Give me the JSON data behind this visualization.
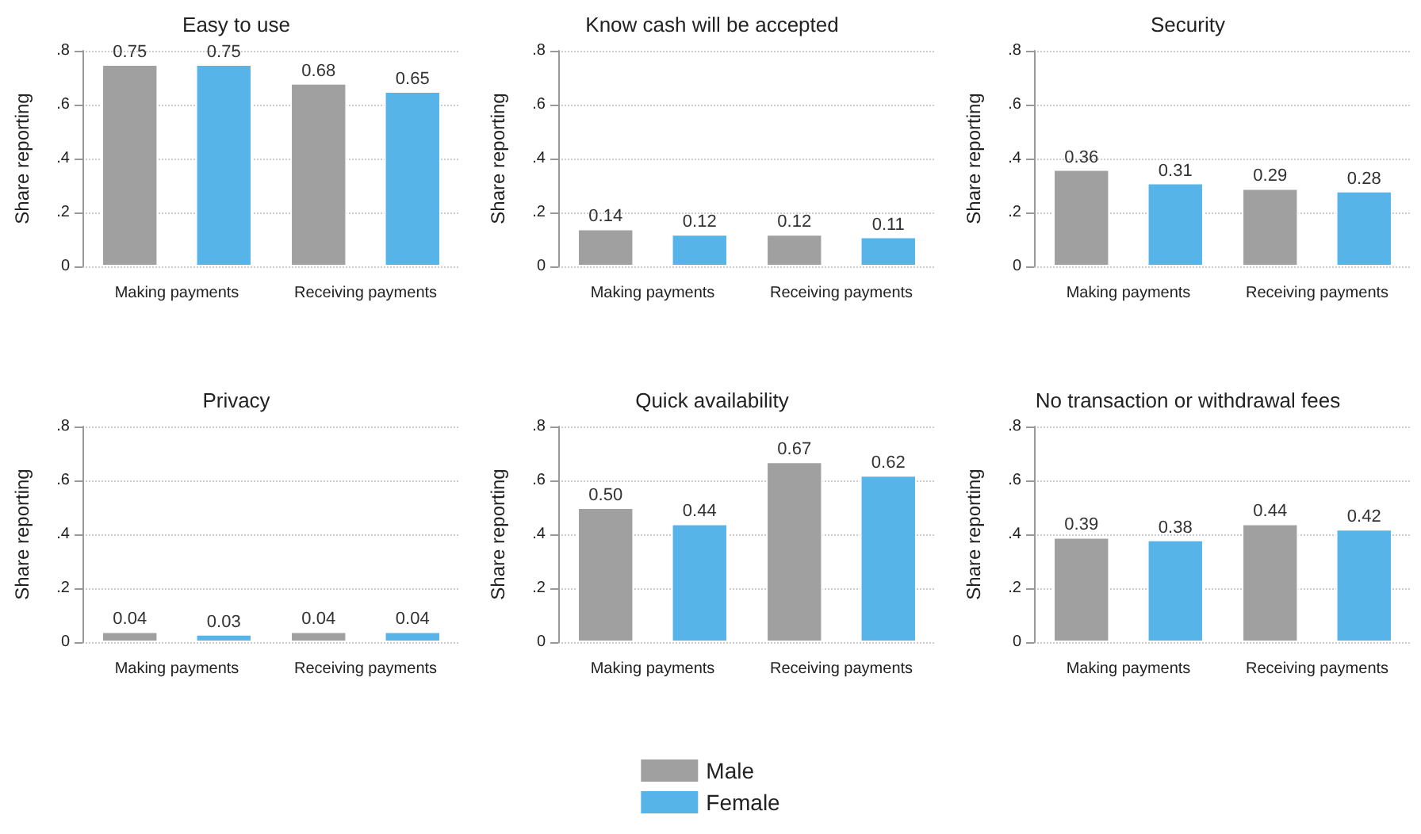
{
  "chart_data": [
    {
      "type": "bar",
      "title": "Easy to use",
      "ylabel": "Share reporting",
      "categories": [
        "Making payments",
        "Receiving payments"
      ],
      "legend": "bottom",
      "series": [
        {
          "name": "Male",
          "color": "#a0a0a0",
          "values": [
            0.75,
            0.68
          ],
          "value_labels": [
            "0.75",
            "0.68"
          ]
        },
        {
          "name": "Female",
          "color": "#56b4e9",
          "values": [
            0.75,
            0.65
          ],
          "value_labels": [
            "0.75",
            "0.65"
          ]
        }
      ],
      "ylim": [
        0,
        0.8
      ],
      "yticks": [
        {
          "value": 0,
          "label": "0"
        },
        {
          "value": 0.2,
          "label": ".2"
        },
        {
          "value": 0.4,
          "label": ".4"
        },
        {
          "value": 0.6,
          "label": ".6"
        },
        {
          "value": 0.8,
          "label": ".8"
        }
      ],
      "grid": "y"
    },
    {
      "type": "bar",
      "title": "Know cash will be accepted",
      "ylabel": "Share reporting",
      "categories": [
        "Making payments",
        "Receiving payments"
      ],
      "series": [
        {
          "name": "Male",
          "color": "#a0a0a0",
          "values": [
            0.14,
            0.12
          ],
          "value_labels": [
            "0.14",
            "0.12"
          ]
        },
        {
          "name": "Female",
          "color": "#56b4e9",
          "values": [
            0.12,
            0.11
          ],
          "value_labels": [
            "0.12",
            "0.11"
          ]
        }
      ],
      "ylim": [
        0,
        0.8
      ],
      "yticks": [
        {
          "value": 0,
          "label": "0"
        },
        {
          "value": 0.2,
          "label": ".2"
        },
        {
          "value": 0.4,
          "label": ".4"
        },
        {
          "value": 0.6,
          "label": ".6"
        },
        {
          "value": 0.8,
          "label": ".8"
        }
      ],
      "grid": "y"
    },
    {
      "type": "bar",
      "title": "Security",
      "ylabel": "Share reporting",
      "categories": [
        "Making payments",
        "Receiving payments"
      ],
      "series": [
        {
          "name": "Male",
          "color": "#a0a0a0",
          "values": [
            0.36,
            0.29
          ],
          "value_labels": [
            "0.36",
            "0.29"
          ]
        },
        {
          "name": "Female",
          "color": "#56b4e9",
          "values": [
            0.31,
            0.28
          ],
          "value_labels": [
            "0.31",
            "0.28"
          ]
        }
      ],
      "ylim": [
        0,
        0.8
      ],
      "yticks": [
        {
          "value": 0,
          "label": "0"
        },
        {
          "value": 0.2,
          "label": ".2"
        },
        {
          "value": 0.4,
          "label": ".4"
        },
        {
          "value": 0.6,
          "label": ".6"
        },
        {
          "value": 0.8,
          "label": ".8"
        }
      ],
      "grid": "y"
    },
    {
      "type": "bar",
      "title": "Privacy",
      "ylabel": "Share reporting",
      "categories": [
        "Making payments",
        "Receiving payments"
      ],
      "series": [
        {
          "name": "Male",
          "color": "#a0a0a0",
          "values": [
            0.04,
            0.04
          ],
          "value_labels": [
            "0.04",
            "0.04"
          ]
        },
        {
          "name": "Female",
          "color": "#56b4e9",
          "values": [
            0.03,
            0.04
          ],
          "value_labels": [
            "0.03",
            "0.04"
          ]
        }
      ],
      "ylim": [
        0,
        0.8
      ],
      "yticks": [
        {
          "value": 0,
          "label": "0"
        },
        {
          "value": 0.2,
          "label": ".2"
        },
        {
          "value": 0.4,
          "label": ".4"
        },
        {
          "value": 0.6,
          "label": ".6"
        },
        {
          "value": 0.8,
          "label": ".8"
        }
      ],
      "grid": "y"
    },
    {
      "type": "bar",
      "title": "Quick availability",
      "ylabel": "Share reporting",
      "categories": [
        "Making payments",
        "Receiving payments"
      ],
      "series": [
        {
          "name": "Male",
          "color": "#a0a0a0",
          "values": [
            0.5,
            0.67
          ],
          "value_labels": [
            "0.50",
            "0.67"
          ]
        },
        {
          "name": "Female",
          "color": "#56b4e9",
          "values": [
            0.44,
            0.62
          ],
          "value_labels": [
            "0.44",
            "0.62"
          ]
        }
      ],
      "ylim": [
        0,
        0.8
      ],
      "yticks": [
        {
          "value": 0,
          "label": "0"
        },
        {
          "value": 0.2,
          "label": ".2"
        },
        {
          "value": 0.4,
          "label": ".4"
        },
        {
          "value": 0.6,
          "label": ".6"
        },
        {
          "value": 0.8,
          "label": ".8"
        }
      ],
      "grid": "y"
    },
    {
      "type": "bar",
      "title": "No transaction or withdrawal fees",
      "ylabel": "Share reporting",
      "categories": [
        "Making payments",
        "Receiving payments"
      ],
      "series": [
        {
          "name": "Male",
          "color": "#a0a0a0",
          "values": [
            0.39,
            0.44
          ],
          "value_labels": [
            "0.39",
            "0.44"
          ]
        },
        {
          "name": "Female",
          "color": "#56b4e9",
          "values": [
            0.38,
            0.42
          ],
          "value_labels": [
            "0.38",
            "0.42"
          ]
        }
      ],
      "ylim": [
        0,
        0.8
      ],
      "yticks": [
        {
          "value": 0,
          "label": "0"
        },
        {
          "value": 0.2,
          "label": ".2"
        },
        {
          "value": 0.4,
          "label": ".4"
        },
        {
          "value": 0.6,
          "label": ".6"
        },
        {
          "value": 0.8,
          "label": ".8"
        }
      ],
      "grid": "y"
    }
  ]
}
